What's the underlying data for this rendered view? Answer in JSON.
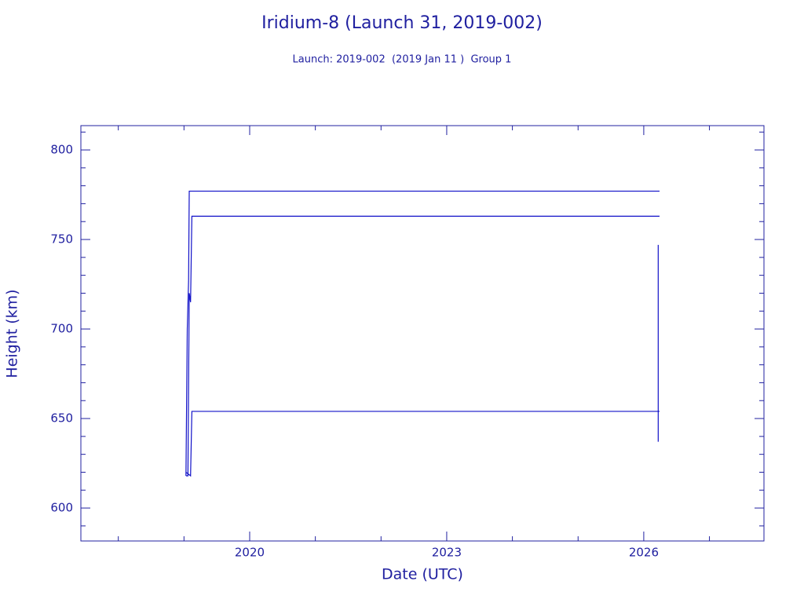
{
  "chart_data": {
    "type": "line",
    "title": "Iridium-8 (Launch 31, 2019-002)",
    "subtitle": "Launch: 2019-002  (2019 Jan 11 )  Group 1",
    "x_label": "Date (UTC)",
    "y_label": "Height (km)",
    "color": "#1010c8",
    "text_color": "#2020a0",
    "series": [
      {
        "color": "#1010c8",
        "x": [
          2019.03,
          2019.05,
          2019.07,
          2019.08,
          2019.12,
          2026.24
        ],
        "values": [
          618,
          700,
          727,
          777,
          777,
          777
        ]
      },
      {
        "color": "#1010c8",
        "x": [
          2019.03,
          2019.06,
          2019.08,
          2019.1,
          2019.12,
          2026.24
        ],
        "values": [
          618,
          618,
          720,
          715,
          763,
          763
        ]
      },
      {
        "color": "#1010c8",
        "x": [
          2019.03,
          2019.1,
          2019.12,
          2026.24
        ],
        "values": [
          620,
          618,
          654,
          654
        ]
      },
      {
        "color": "#1010c8",
        "x": [
          2026.22,
          2026.22
        ],
        "values": [
          637,
          747
        ]
      }
    ],
    "xlim": [
      2017.43,
      2027.83
    ],
    "ylim": [
      581.6,
      813.6
    ],
    "xticks": [
      2020,
      2023,
      2026
    ],
    "xminorticks": [
      2018,
      2019,
      2021,
      2022,
      2024,
      2025,
      2027
    ],
    "yticks": [
      600,
      650,
      700,
      750,
      800
    ],
    "yminorticks": [
      590,
      610,
      620,
      630,
      640,
      660,
      670,
      680,
      690,
      710,
      720,
      730,
      740,
      760,
      770,
      780,
      790,
      810
    ],
    "grid": false
  }
}
